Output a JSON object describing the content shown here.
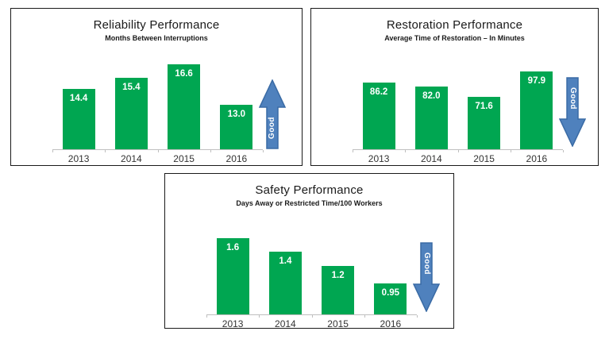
{
  "good_label": "Good",
  "colors": {
    "bar_green": "#00a651",
    "arrow_blue": "#4f81bd",
    "arrow_border": "#3a6ba5",
    "axis_gray": "#bfbfbf",
    "panel_border": "#1a1a1a",
    "title_text": "#1a1a1a",
    "year_text": "#333333",
    "bar_label_text": "#ffffff"
  },
  "chart_data": [
    {
      "type": "bar",
      "title": "Reliability Performance",
      "subtitle": "Months Between Interruptions",
      "categories": [
        "2013",
        "2014",
        "2015",
        "2016"
      ],
      "values": [
        14.4,
        15.4,
        16.6,
        13.0
      ],
      "value_labels": [
        "14.4",
        "15.4",
        "16.6",
        "13.0"
      ],
      "ylim": [
        9,
        17.5
      ],
      "grid": false,
      "legend": "none",
      "bar_color": "#00a651",
      "good_direction": "up",
      "annotation": "Good"
    },
    {
      "type": "bar",
      "title": "Restoration Performance",
      "subtitle": "Average Time of Restoration – In Minutes",
      "categories": [
        "2013",
        "2014",
        "2015",
        "2016"
      ],
      "values": [
        86.2,
        82.0,
        71.6,
        97.9
      ],
      "value_labels": [
        "86.2",
        "82.0",
        "71.6",
        "97.9"
      ],
      "ylim": [
        17,
        105
      ],
      "grid": false,
      "legend": "none",
      "bar_color": "#00a651",
      "good_direction": "down",
      "annotation": "Good"
    },
    {
      "type": "bar",
      "title": "Safety Performance",
      "subtitle": "Days Away or Restricted Time/100 Workers",
      "categories": [
        "2013",
        "2014",
        "2015",
        "2016"
      ],
      "values": [
        1.6,
        1.4,
        1.2,
        0.95
      ],
      "value_labels": [
        "1.6",
        "1.4",
        "1.2",
        "0.95"
      ],
      "ylim": [
        0.5,
        1.7
      ],
      "grid": false,
      "legend": "none",
      "bar_color": "#00a651",
      "good_direction": "down",
      "annotation": "Good"
    }
  ]
}
